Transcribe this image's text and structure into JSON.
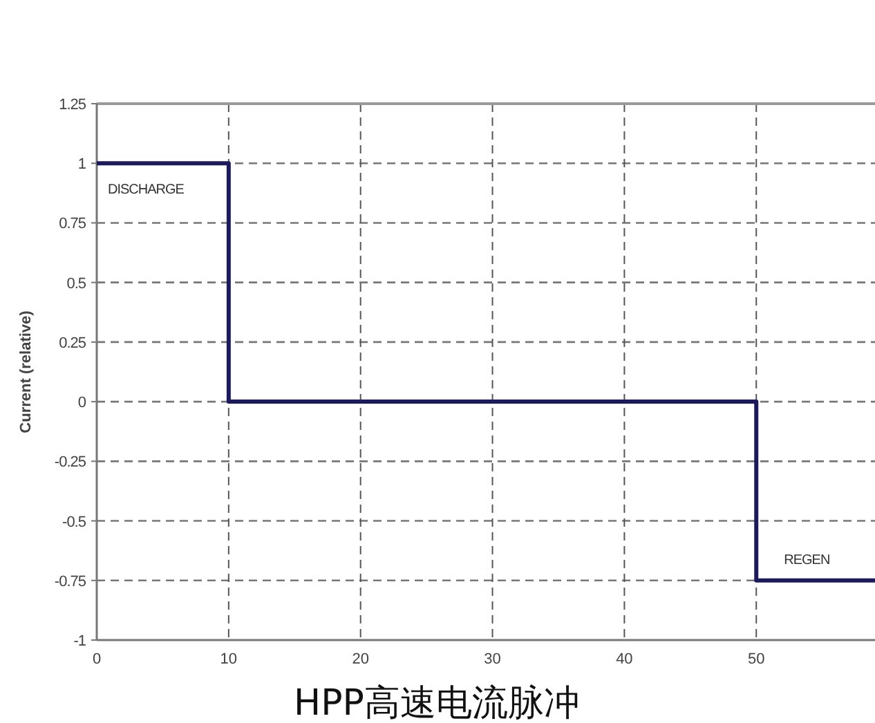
{
  "chart_data": {
    "type": "step",
    "title": "HPP高速电流脉冲",
    "ylabel": "Current (relative)",
    "x": [
      0,
      10,
      50,
      59
    ],
    "series": [
      {
        "color": "#1c1a5c",
        "values": [
          1,
          0,
          -0.75,
          -0.75
        ]
      }
    ],
    "xlim": [
      0,
      59
    ],
    "xticks": [
      0,
      10,
      20,
      30,
      40,
      50
    ],
    "ylim": [
      -1,
      1.25
    ],
    "yticks": [
      -1,
      -0.75,
      -0.5,
      -0.25,
      0,
      0.25,
      0.5,
      0.75,
      1,
      1.25
    ],
    "grid": true,
    "annotations": [
      "DISCHARGE",
      "REGEN"
    ]
  }
}
